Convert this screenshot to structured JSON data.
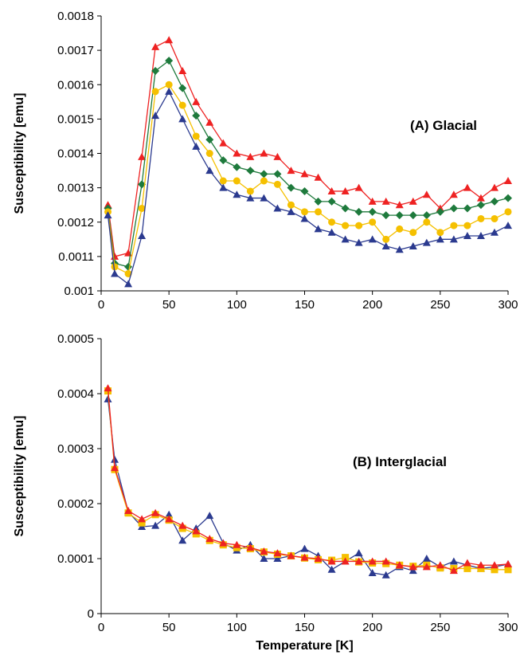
{
  "chart_data": [
    {
      "type": "line",
      "annotation": "(A) Glacial",
      "ylabel": "Susceptibility [emu]",
      "xlabel": "",
      "xlim": [
        0,
        300
      ],
      "ylim": [
        0.001,
        0.0018
      ],
      "xticks": [
        "0",
        "50",
        "100",
        "150",
        "200",
        "250",
        "300"
      ],
      "yticks": [
        "0.001",
        "0.0011",
        "0.0012",
        "0.0013",
        "0.0014",
        "0.0015",
        "0.0016",
        "0.0017",
        "0.0018"
      ],
      "x": [
        5,
        10,
        20,
        30,
        40,
        50,
        60,
        70,
        80,
        90,
        100,
        110,
        120,
        130,
        140,
        150,
        160,
        170,
        180,
        190,
        200,
        210,
        220,
        230,
        240,
        250,
        260,
        270,
        280,
        290,
        300
      ],
      "series": [
        {
          "color": "#ee2222",
          "marker": "triangle",
          "values": [
            0.00125,
            0.0011,
            0.00111,
            0.00139,
            0.00171,
            0.00173,
            0.00164,
            0.00155,
            0.00149,
            0.00143,
            0.0014,
            0.00139,
            0.0014,
            0.00139,
            0.00135,
            0.00134,
            0.00133,
            0.00129,
            0.00129,
            0.0013,
            0.00126,
            0.00126,
            0.00125,
            0.00126,
            0.00128,
            0.00124,
            0.00128,
            0.0013,
            0.00127,
            0.0013,
            0.00132
          ]
        },
        {
          "color": "#1e7a3c",
          "marker": "diamond",
          "values": [
            0.00124,
            0.00108,
            0.00107,
            0.00131,
            0.00164,
            0.00167,
            0.00159,
            0.00151,
            0.00144,
            0.00138,
            0.00136,
            0.00135,
            0.00134,
            0.00134,
            0.0013,
            0.00129,
            0.00126,
            0.00126,
            0.00124,
            0.00123,
            0.00123,
            0.00122,
            0.00122,
            0.00122,
            0.00122,
            0.00123,
            0.00124,
            0.00124,
            0.00125,
            0.00126,
            0.00127
          ]
        },
        {
          "color": "#f5c000",
          "marker": "circle",
          "values": [
            0.00123,
            0.00107,
            0.00105,
            0.00124,
            0.00158,
            0.0016,
            0.00154,
            0.00145,
            0.0014,
            0.00132,
            0.00132,
            0.00129,
            0.00132,
            0.00131,
            0.00125,
            0.00123,
            0.00123,
            0.0012,
            0.00119,
            0.00119,
            0.0012,
            0.00115,
            0.00118,
            0.00117,
            0.0012,
            0.00117,
            0.00119,
            0.00119,
            0.00121,
            0.00121,
            0.00123
          ]
        },
        {
          "color": "#2b3a8f",
          "marker": "triangle",
          "values": [
            0.00122,
            0.00105,
            0.00102,
            0.00116,
            0.00151,
            0.00158,
            0.0015,
            0.00142,
            0.00135,
            0.0013,
            0.00128,
            0.00127,
            0.00127,
            0.00124,
            0.00123,
            0.00121,
            0.00118,
            0.00117,
            0.00115,
            0.00114,
            0.00115,
            0.00113,
            0.00112,
            0.00113,
            0.00114,
            0.00115,
            0.00115,
            0.00116,
            0.00116,
            0.00117,
            0.00119
          ]
        }
      ]
    },
    {
      "type": "line",
      "annotation": "(B) Interglacial",
      "ylabel": "Susceptibility [emu]",
      "xlabel": "Temperature [K]",
      "xlim": [
        0,
        300
      ],
      "ylim": [
        0,
        0.0005
      ],
      "xticks": [
        "0",
        "50",
        "100",
        "150",
        "200",
        "250",
        "300"
      ],
      "yticks": [
        "0",
        "0.0001",
        "0.0002",
        "0.0003",
        "0.0004",
        "0.0005"
      ],
      "x": [
        5,
        10,
        20,
        30,
        40,
        50,
        60,
        70,
        80,
        90,
        100,
        110,
        120,
        130,
        140,
        150,
        160,
        170,
        180,
        190,
        200,
        210,
        220,
        230,
        240,
        250,
        260,
        270,
        280,
        290,
        300
      ],
      "series": [
        {
          "color": "#2b3a8f",
          "marker": "triangle",
          "values": [
            0.00039,
            0.00028,
            0.000185,
            0.000158,
            0.00016,
            0.00018,
            0.000133,
            0.000155,
            0.000178,
            0.000128,
            0.000115,
            0.000125,
            0.0001,
            0.0001,
            0.000105,
            0.000118,
            0.000105,
            8e-05,
            9.5e-05,
            0.00011,
            7.4e-05,
            7e-05,
            8.5e-05,
            7.8e-05,
            0.0001,
            8.5e-05,
            9.5e-05,
            8.8e-05,
            8.2e-05,
            8.5e-05,
            9e-05
          ]
        },
        {
          "color": "#f5c000",
          "marker": "square",
          "values": [
            0.000405,
            0.000262,
            0.000183,
            0.000165,
            0.00018,
            0.00017,
            0.000155,
            0.000145,
            0.000133,
            0.000125,
            0.00012,
            0.000118,
            0.000112,
            0.000108,
            0.000105,
            0.000101,
            9.8e-05,
            9.7e-05,
            0.000102,
            9.4e-05,
            9.2e-05,
            9.1e-05,
            8.8e-05,
            8.6e-05,
            8.8e-05,
            8.3e-05,
            8.2e-05,
            8.2e-05,
            8.2e-05,
            8e-05,
            8e-05
          ]
        },
        {
          "color": "#ee2222",
          "marker": "triangle",
          "values": [
            0.00041,
            0.000265,
            0.000187,
            0.000172,
            0.000183,
            0.000172,
            0.00016,
            0.00015,
            0.000136,
            0.000128,
            0.000125,
            0.00012,
            0.000113,
            0.00011,
            0.000105,
            0.000102,
            0.0001,
            9.5e-05,
            9.5e-05,
            9.5e-05,
            9.5e-05,
            9.5e-05,
            8.8e-05,
            8.5e-05,
            8.5e-05,
            8.8e-05,
            7.8e-05,
            9.2e-05,
            8.8e-05,
            8.8e-05,
            9e-05
          ]
        }
      ]
    }
  ]
}
